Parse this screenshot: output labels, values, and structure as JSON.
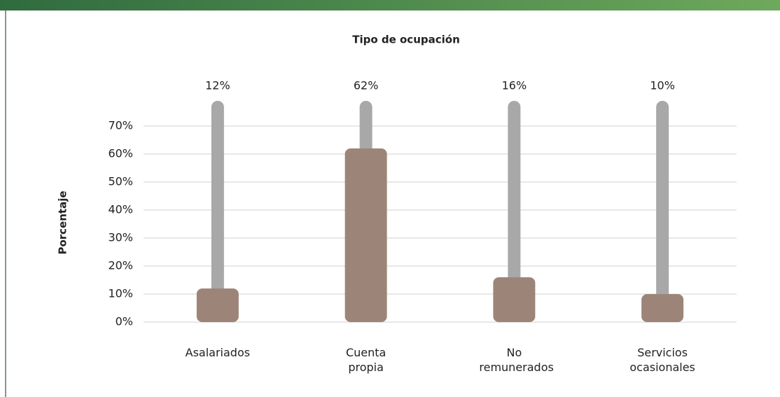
{
  "chart_data": {
    "type": "bar",
    "title": "Tipo de ocupación",
    "y_label": "Porcentaje",
    "categories": [
      "Asalariados",
      "Cuenta propia",
      "No remunerados",
      "Servicios ocasionales"
    ],
    "values": [
      12,
      62,
      16,
      10
    ],
    "value_labels": [
      "12%",
      "62%",
      "16%",
      "10%"
    ],
    "color": "#9c8578",
    "track_color": "#a8a8a8",
    "ylim": [
      0,
      80
    ],
    "yticks": [
      {
        "value": 0,
        "label": "0%"
      },
      {
        "value": 10,
        "label": "10%"
      },
      {
        "value": 20,
        "label": "20%"
      },
      {
        "value": 30,
        "label": "30%"
      },
      {
        "value": 40,
        "label": "40%"
      },
      {
        "value": 50,
        "label": "50%"
      },
      {
        "value": 60,
        "label": "60%"
      },
      {
        "value": 70,
        "label": "70%"
      }
    ],
    "grid": true
  }
}
